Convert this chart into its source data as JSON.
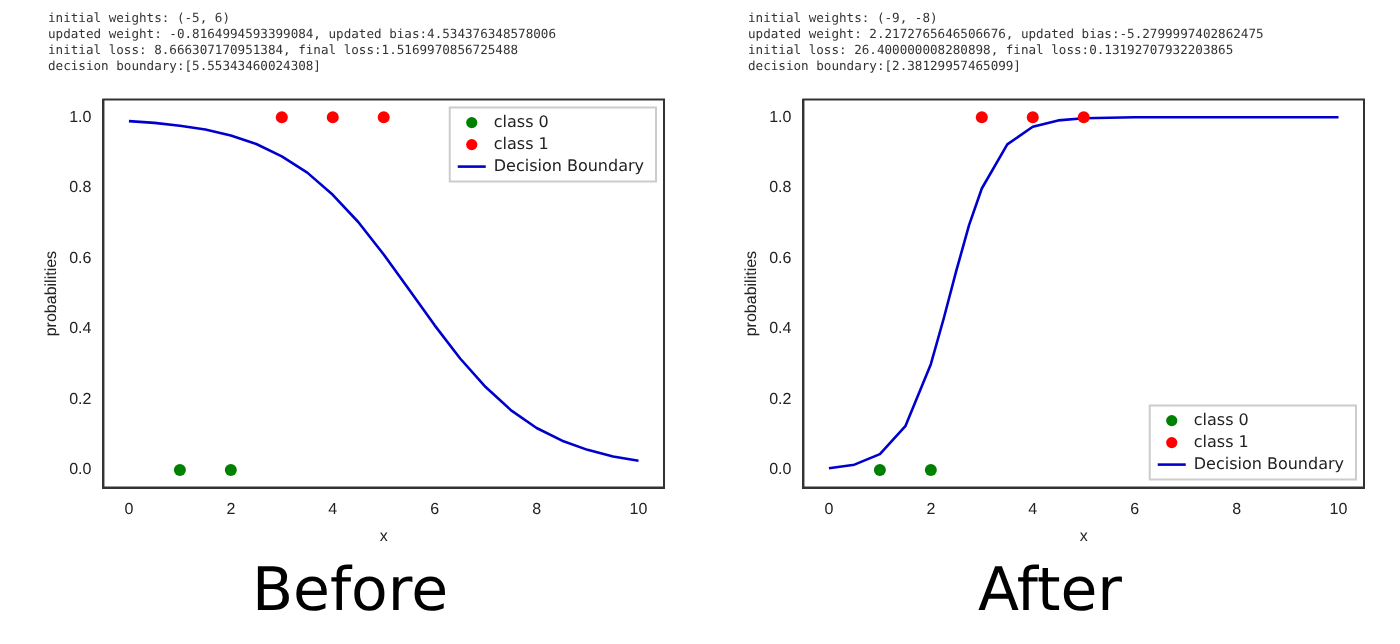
{
  "chart_data": [
    {
      "type": "scatter",
      "title": "Before",
      "xlabel": "x",
      "ylabel": "probabilities",
      "annotations": [
        "initial weights: (-5, 6)",
        "updated weight: -0.8164994593399084, updated bias:4.534376348578006",
        "initial loss: 8.666307170951384, final loss:1.5169970856725488",
        "decision boundary:[5.55343460024308]"
      ],
      "xlim": [
        -0.5,
        10.5
      ],
      "xticks": [
        0,
        2,
        4,
        6,
        8,
        10
      ],
      "ylim": [
        -0.05,
        1.05
      ],
      "yticks": [
        {
          "value": 0,
          "label": "0.0"
        },
        {
          "value": 0.2,
          "label": "0.2"
        },
        {
          "value": 0.4,
          "label": "0.4"
        },
        {
          "value": 0.6,
          "label": "0.6"
        },
        {
          "value": 0.8,
          "label": "0.8"
        },
        {
          "value": 1,
          "label": "1.0"
        }
      ],
      "grid": false,
      "legend": "top right",
      "series": [
        {
          "name": "class 0",
          "type": "scatter",
          "marker": "circle",
          "color": "#008000",
          "x": [
            1,
            2
          ],
          "values": [
            0,
            0
          ]
        },
        {
          "name": "class 1",
          "type": "scatter",
          "marker": "circle",
          "color": "#ff0000",
          "x": [
            3,
            4,
            5
          ],
          "values": [
            1,
            1,
            1
          ]
        },
        {
          "name": "Decision Boundary",
          "type": "line",
          "marker": "none",
          "line_style": "solid",
          "color": "#0000cd",
          "x": [
            0,
            0.5,
            1,
            1.5,
            2,
            2.5,
            3,
            3.5,
            4,
            4.5,
            5,
            5.5,
            6,
            6.5,
            7,
            7.5,
            8,
            8.5,
            9,
            9.5,
            10
          ],
          "values": [
            0.989,
            0.984,
            0.976,
            0.965,
            0.948,
            0.924,
            0.889,
            0.843,
            0.78,
            0.703,
            0.611,
            0.511,
            0.41,
            0.316,
            0.235,
            0.169,
            0.119,
            0.083,
            0.057,
            0.038,
            0.026
          ]
        }
      ]
    },
    {
      "type": "scatter",
      "title": "After",
      "xlabel": "x",
      "ylabel": "probabilities",
      "annotations": [
        "initial weights: (-9, -8)",
        "updated weight: 2.2172765646506676, updated bias:-5.2799997402862475",
        "initial loss: 26.400000008280898, final loss:0.13192707932203865",
        "decision boundary:[2.38129957465099]"
      ],
      "xlim": [
        -0.5,
        10.5
      ],
      "xticks": [
        0,
        2,
        4,
        6,
        8,
        10
      ],
      "ylim": [
        -0.05,
        1.05
      ],
      "yticks": [
        {
          "value": 0,
          "label": "0.0"
        },
        {
          "value": 0.2,
          "label": "0.2"
        },
        {
          "value": 0.4,
          "label": "0.4"
        },
        {
          "value": 0.6,
          "label": "0.6"
        },
        {
          "value": 0.8,
          "label": "0.8"
        },
        {
          "value": 1,
          "label": "1.0"
        }
      ],
      "grid": false,
      "legend": "bottom right",
      "series": [
        {
          "name": "class 0",
          "type": "scatter",
          "marker": "circle",
          "color": "#008000",
          "x": [
            1,
            2
          ],
          "values": [
            0,
            0
          ]
        },
        {
          "name": "class 1",
          "type": "scatter",
          "marker": "circle",
          "color": "#ff0000",
          "x": [
            3,
            4,
            5
          ],
          "values": [
            1,
            1,
            1
          ]
        },
        {
          "name": "Decision Boundary",
          "type": "line",
          "marker": "none",
          "line_style": "solid",
          "color": "#0000cd",
          "x": [
            0,
            0.5,
            1,
            1.5,
            2,
            2.25,
            2.5,
            2.75,
            3,
            3.5,
            4,
            4.5,
            5,
            6,
            7,
            8,
            9,
            10
          ],
          "values": [
            0.005,
            0.015,
            0.045,
            0.124,
            0.3,
            0.428,
            0.565,
            0.694,
            0.798,
            0.923,
            0.973,
            0.991,
            0.997,
            1,
            1,
            1,
            1,
            1
          ]
        }
      ]
    }
  ]
}
